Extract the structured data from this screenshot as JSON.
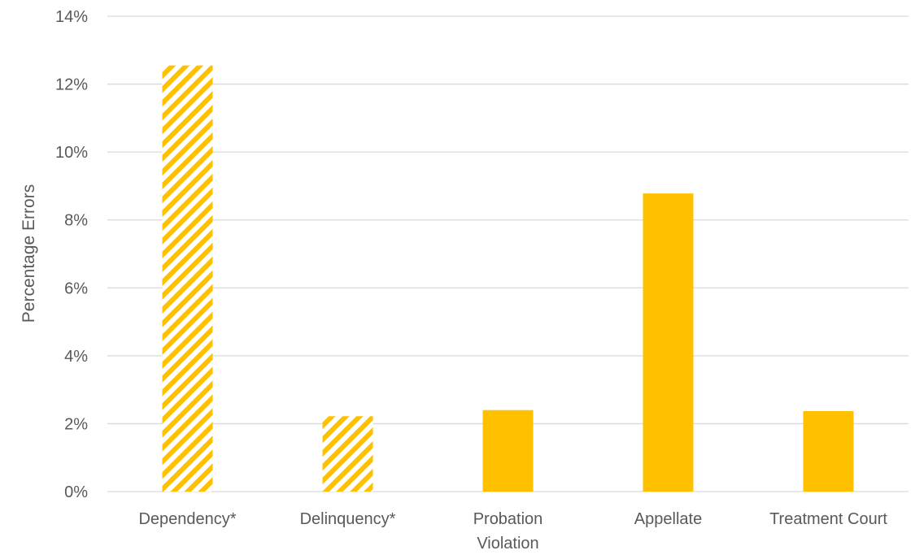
{
  "chart_data": {
    "type": "bar",
    "title": "",
    "xlabel": "",
    "ylabel": "Percentage Errors",
    "ylim": [
      0,
      14
    ],
    "y_ticks": [
      "0%",
      "2%",
      "4%",
      "6%",
      "8%",
      "10%",
      "12%",
      "14%"
    ],
    "categories": [
      [
        "Dependency*"
      ],
      [
        "Delinquency*"
      ],
      [
        "Probation",
        "Violation"
      ],
      [
        "Appellate"
      ],
      [
        "Treatment Court"
      ]
    ],
    "values": [
      12.55,
      2.22,
      2.4,
      8.78,
      2.37
    ],
    "hatched": [
      true,
      true,
      false,
      false,
      false
    ],
    "grid": true,
    "legend": "none"
  },
  "colors": {
    "bar": "#ffc000",
    "grid": "#d9d9d9",
    "text": "#595959",
    "background": "#ffffff"
  }
}
